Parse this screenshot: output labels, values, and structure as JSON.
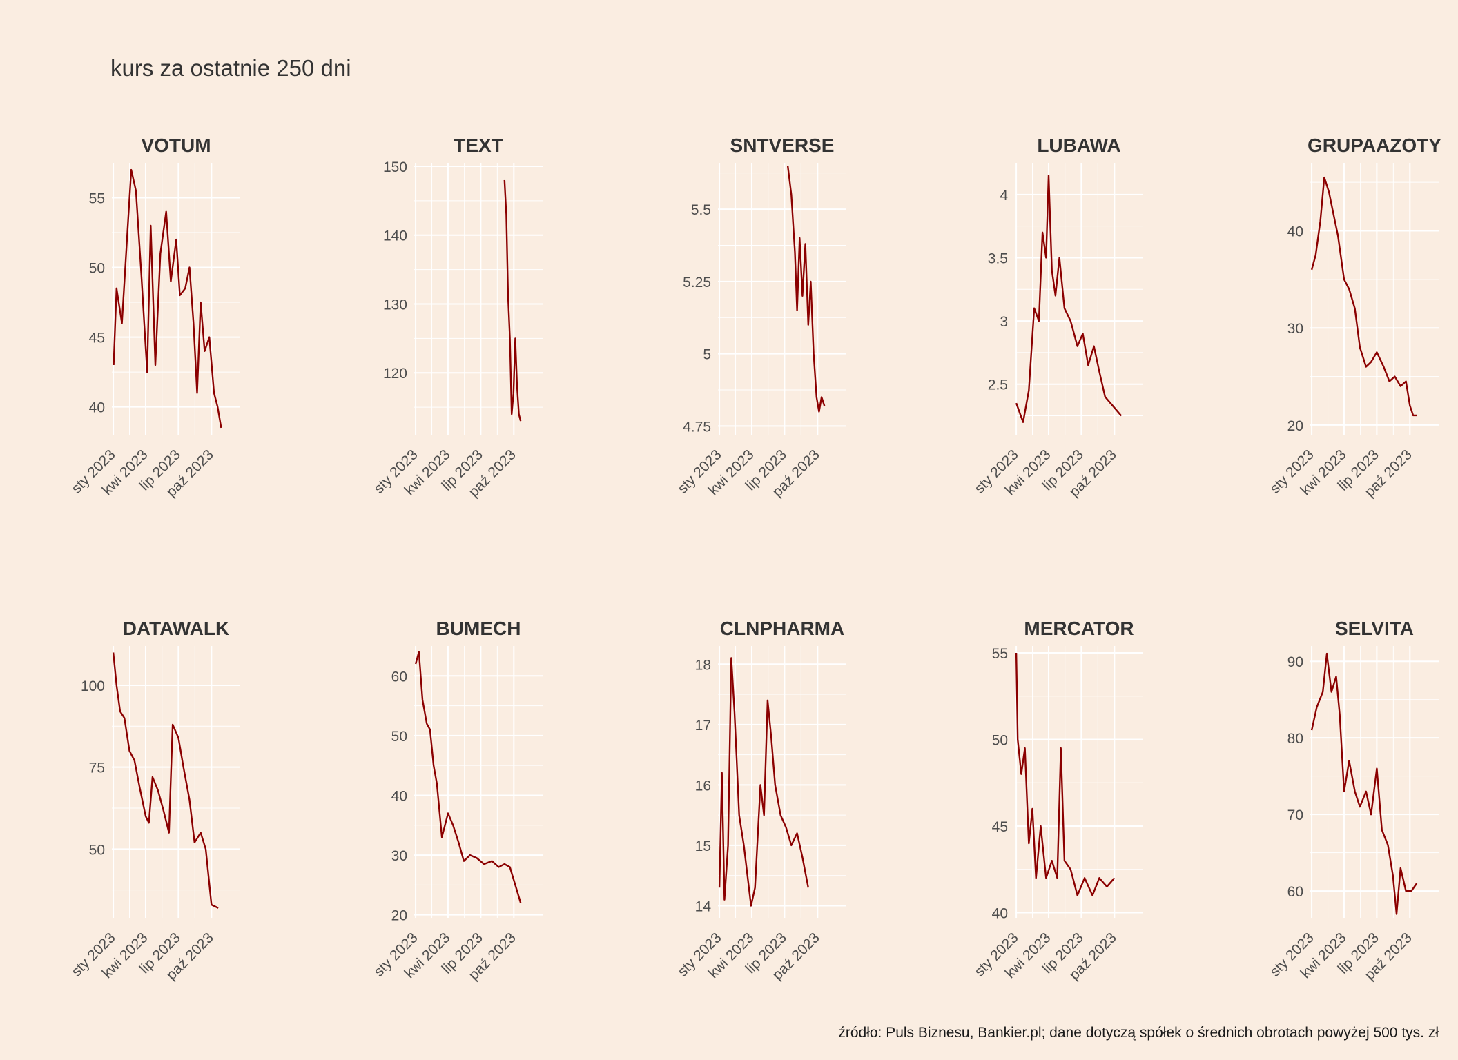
{
  "chart_data": {
    "type": "line",
    "title": "kurs za ostatnie 250 dni",
    "caption": "źródło: Puls Biznesu, Bankier.pl; dane dotyczą spółek o średnich obrotach powyżej 500 tys. zł",
    "x_range": [
      "2022-12-28",
      "2023-12-20"
    ],
    "x_ticks": [
      {
        "date": "2023-01-01",
        "label": "sty 2023"
      },
      {
        "date": "2023-04-01",
        "label": "kwi 2023"
      },
      {
        "date": "2023-07-01",
        "label": "lip 2023"
      },
      {
        "date": "2023-10-01",
        "label": "paź 2023"
      }
    ],
    "line_color": "#8b0000",
    "grid": true,
    "panels": [
      {
        "name": "VOTUM",
        "ylim": [
          38,
          57.5
        ],
        "y_ticks": [
          40,
          45,
          50,
          55
        ],
        "series": [
          [
            "2023-01-02",
            43.0
          ],
          [
            "2023-01-10",
            48.5
          ],
          [
            "2023-01-25",
            46.0
          ],
          [
            "2023-02-08",
            52.0
          ],
          [
            "2023-02-20",
            57.0
          ],
          [
            "2023-03-05",
            55.5
          ],
          [
            "2023-03-20",
            49.5
          ],
          [
            "2023-04-05",
            42.5
          ],
          [
            "2023-04-15",
            53.0
          ],
          [
            "2023-04-28",
            43.0
          ],
          [
            "2023-05-12",
            51.0
          ],
          [
            "2023-05-28",
            54.0
          ],
          [
            "2023-06-10",
            49.0
          ],
          [
            "2023-06-25",
            52.0
          ],
          [
            "2023-07-05",
            48.0
          ],
          [
            "2023-07-20",
            48.5
          ],
          [
            "2023-08-01",
            50.0
          ],
          [
            "2023-08-12",
            46.0
          ],
          [
            "2023-08-22",
            41.0
          ],
          [
            "2023-09-01",
            47.5
          ],
          [
            "2023-09-12",
            44.0
          ],
          [
            "2023-09-25",
            45.0
          ],
          [
            "2023-10-08",
            41.0
          ],
          [
            "2023-10-18",
            40.0
          ],
          [
            "2023-10-28",
            38.5
          ]
        ]
      },
      {
        "name": "TEXT",
        "ylim": [
          111,
          150.5
        ],
        "y_ticks": [
          120,
          130,
          140,
          150
        ],
        "series": [
          [
            "2023-09-05",
            148.0
          ],
          [
            "2023-09-10",
            143.0
          ],
          [
            "2023-09-15",
            131.0
          ],
          [
            "2023-09-20",
            125.0
          ],
          [
            "2023-09-25",
            114.0
          ],
          [
            "2023-09-30",
            117.0
          ],
          [
            "2023-10-05",
            125.0
          ],
          [
            "2023-10-10",
            118.0
          ],
          [
            "2023-10-15",
            114.0
          ],
          [
            "2023-10-20",
            113.0
          ]
        ]
      },
      {
        "name": "SNTVERSE",
        "ylim": [
          4.72,
          5.66
        ],
        "y_ticks": [
          4.75,
          5.0,
          5.25,
          5.5
        ],
        "series": [
          [
            "2023-07-10",
            5.65
          ],
          [
            "2023-07-20",
            5.55
          ],
          [
            "2023-07-30",
            5.35
          ],
          [
            "2023-08-05",
            5.15
          ],
          [
            "2023-08-12",
            5.4
          ],
          [
            "2023-08-20",
            5.2
          ],
          [
            "2023-08-28",
            5.38
          ],
          [
            "2023-09-05",
            5.1
          ],
          [
            "2023-09-12",
            5.25
          ],
          [
            "2023-09-20",
            5.0
          ],
          [
            "2023-09-28",
            4.85
          ],
          [
            "2023-10-05",
            4.8
          ],
          [
            "2023-10-12",
            4.85
          ],
          [
            "2023-10-20",
            4.82
          ]
        ]
      },
      {
        "name": "LUBAWA",
        "ylim": [
          2.1,
          4.25
        ],
        "y_ticks": [
          2.5,
          3.0,
          3.5,
          4.0
        ],
        "series": [
          [
            "2023-01-01",
            2.35
          ],
          [
            "2023-01-20",
            2.2
          ],
          [
            "2023-02-05",
            2.45
          ],
          [
            "2023-02-20",
            3.1
          ],
          [
            "2023-03-05",
            3.0
          ],
          [
            "2023-03-15",
            3.7
          ],
          [
            "2023-03-25",
            3.5
          ],
          [
            "2023-04-01",
            4.15
          ],
          [
            "2023-04-10",
            3.4
          ],
          [
            "2023-04-20",
            3.2
          ],
          [
            "2023-05-01",
            3.5
          ],
          [
            "2023-05-15",
            3.1
          ],
          [
            "2023-06-01",
            3.0
          ],
          [
            "2023-06-20",
            2.8
          ],
          [
            "2023-07-05",
            2.9
          ],
          [
            "2023-07-20",
            2.65
          ],
          [
            "2023-08-05",
            2.8
          ],
          [
            "2023-08-20",
            2.6
          ],
          [
            "2023-09-05",
            2.4
          ],
          [
            "2023-09-20",
            2.35
          ],
          [
            "2023-10-05",
            2.3
          ],
          [
            "2023-10-20",
            2.25
          ]
        ]
      },
      {
        "name": "GRUPAAZOTY",
        "ylim": [
          19,
          47
        ],
        "y_ticks": [
          20,
          30,
          40
        ],
        "series": [
          [
            "2023-01-01",
            36.0
          ],
          [
            "2023-01-12",
            37.5
          ],
          [
            "2023-01-25",
            41.0
          ],
          [
            "2023-02-05",
            45.5
          ],
          [
            "2023-02-18",
            44.0
          ],
          [
            "2023-03-01",
            42.0
          ],
          [
            "2023-03-15",
            39.5
          ],
          [
            "2023-04-01",
            35.0
          ],
          [
            "2023-04-15",
            34.0
          ],
          [
            "2023-05-01",
            32.0
          ],
          [
            "2023-05-15",
            28.0
          ],
          [
            "2023-06-01",
            26.0
          ],
          [
            "2023-06-15",
            26.5
          ],
          [
            "2023-07-01",
            27.5
          ],
          [
            "2023-07-20",
            26.0
          ],
          [
            "2023-08-05",
            24.5
          ],
          [
            "2023-08-20",
            25.0
          ],
          [
            "2023-09-05",
            24.0
          ],
          [
            "2023-09-20",
            24.5
          ],
          [
            "2023-10-01",
            22.0
          ],
          [
            "2023-10-10",
            21.0
          ],
          [
            "2023-10-20",
            21.0
          ]
        ]
      },
      {
        "name": "DATAWALK",
        "ylim": [
          29,
          112
        ],
        "y_ticks": [
          50,
          75,
          100
        ],
        "series": [
          [
            "2023-01-01",
            110.0
          ],
          [
            "2023-01-10",
            100.0
          ],
          [
            "2023-01-20",
            92.0
          ],
          [
            "2023-02-01",
            90.0
          ],
          [
            "2023-02-15",
            80.0
          ],
          [
            "2023-03-01",
            77.0
          ],
          [
            "2023-03-15",
            69.0
          ],
          [
            "2023-04-01",
            60.0
          ],
          [
            "2023-04-10",
            58.0
          ],
          [
            "2023-04-20",
            72.0
          ],
          [
            "2023-05-05",
            68.0
          ],
          [
            "2023-05-20",
            62.0
          ],
          [
            "2023-06-05",
            55.0
          ],
          [
            "2023-06-15",
            88.0
          ],
          [
            "2023-07-01",
            84.0
          ],
          [
            "2023-07-15",
            75.0
          ],
          [
            "2023-08-01",
            65.0
          ],
          [
            "2023-08-15",
            52.0
          ],
          [
            "2023-09-01",
            55.0
          ],
          [
            "2023-09-15",
            50.0
          ],
          [
            "2023-10-01",
            33.0
          ],
          [
            "2023-10-20",
            32.0
          ]
        ]
      },
      {
        "name": "BUMECH",
        "ylim": [
          19.5,
          65
        ],
        "y_ticks": [
          20,
          30,
          40,
          50,
          60
        ],
        "series": [
          [
            "2023-01-01",
            62.0
          ],
          [
            "2023-01-10",
            64.0
          ],
          [
            "2023-01-20",
            56.0
          ],
          [
            "2023-02-01",
            52.0
          ],
          [
            "2023-02-10",
            51.0
          ],
          [
            "2023-02-20",
            45.0
          ],
          [
            "2023-03-01",
            42.0
          ],
          [
            "2023-03-15",
            33.0
          ],
          [
            "2023-04-01",
            37.0
          ],
          [
            "2023-04-15",
            35.0
          ],
          [
            "2023-05-01",
            32.0
          ],
          [
            "2023-05-15",
            29.0
          ],
          [
            "2023-06-01",
            30.0
          ],
          [
            "2023-06-20",
            29.5
          ],
          [
            "2023-07-10",
            28.5
          ],
          [
            "2023-08-01",
            29.0
          ],
          [
            "2023-08-20",
            28.0
          ],
          [
            "2023-09-05",
            28.5
          ],
          [
            "2023-09-20",
            28.0
          ],
          [
            "2023-10-05",
            25.0
          ],
          [
            "2023-10-20",
            22.0
          ]
        ]
      },
      {
        "name": "CLNPHARMA",
        "ylim": [
          13.8,
          18.3
        ],
        "y_ticks": [
          14,
          15,
          16,
          17,
          18
        ],
        "series": [
          [
            "2023-01-01",
            14.3
          ],
          [
            "2023-01-08",
            16.2
          ],
          [
            "2023-01-15",
            14.1
          ],
          [
            "2023-01-25",
            15.0
          ],
          [
            "2023-02-03",
            18.1
          ],
          [
            "2023-02-12",
            17.2
          ],
          [
            "2023-02-25",
            15.5
          ],
          [
            "2023-03-10",
            15.0
          ],
          [
            "2023-03-20",
            14.5
          ],
          [
            "2023-03-30",
            14.0
          ],
          [
            "2023-04-10",
            14.3
          ],
          [
            "2023-04-25",
            16.0
          ],
          [
            "2023-05-05",
            15.5
          ],
          [
            "2023-05-15",
            17.4
          ],
          [
            "2023-05-25",
            16.8
          ],
          [
            "2023-06-05",
            16.0
          ],
          [
            "2023-06-20",
            15.5
          ],
          [
            "2023-07-05",
            15.3
          ],
          [
            "2023-07-20",
            15.0
          ],
          [
            "2023-08-05",
            15.2
          ],
          [
            "2023-08-20",
            14.8
          ],
          [
            "2023-09-05",
            14.3
          ]
        ]
      },
      {
        "name": "MERCATOR",
        "ylim": [
          39.7,
          55.4
        ],
        "y_ticks": [
          40,
          45,
          50,
          55
        ],
        "series": [
          [
            "2023-01-01",
            55.0
          ],
          [
            "2023-01-05",
            50.0
          ],
          [
            "2023-01-15",
            48.0
          ],
          [
            "2023-01-25",
            49.5
          ],
          [
            "2023-02-05",
            44.0
          ],
          [
            "2023-02-15",
            46.0
          ],
          [
            "2023-02-25",
            42.0
          ],
          [
            "2023-03-10",
            45.0
          ],
          [
            "2023-03-25",
            42.0
          ],
          [
            "2023-04-10",
            43.0
          ],
          [
            "2023-04-25",
            42.0
          ],
          [
            "2023-05-05",
            49.5
          ],
          [
            "2023-05-15",
            43.0
          ],
          [
            "2023-06-01",
            42.5
          ],
          [
            "2023-06-20",
            41.0
          ],
          [
            "2023-07-10",
            42.0
          ],
          [
            "2023-08-01",
            41.0
          ],
          [
            "2023-08-20",
            42.0
          ],
          [
            "2023-09-10",
            41.5
          ],
          [
            "2023-10-01",
            42.0
          ]
        ]
      },
      {
        "name": "SELVITA",
        "ylim": [
          56.5,
          92
        ],
        "y_ticks": [
          60,
          70,
          80,
          90
        ],
        "series": [
          [
            "2023-01-01",
            81.0
          ],
          [
            "2023-01-15",
            84.0
          ],
          [
            "2023-02-01",
            86.0
          ],
          [
            "2023-02-12",
            91.0
          ],
          [
            "2023-02-25",
            86.0
          ],
          [
            "2023-03-10",
            88.0
          ],
          [
            "2023-03-20",
            83.0
          ],
          [
            "2023-04-01",
            73.0
          ],
          [
            "2023-04-15",
            77.0
          ],
          [
            "2023-05-01",
            73.0
          ],
          [
            "2023-05-15",
            71.0
          ],
          [
            "2023-06-01",
            73.0
          ],
          [
            "2023-06-15",
            70.0
          ],
          [
            "2023-07-01",
            76.0
          ],
          [
            "2023-07-15",
            68.0
          ],
          [
            "2023-08-01",
            66.0
          ],
          [
            "2023-08-15",
            62.0
          ],
          [
            "2023-08-25",
            57.0
          ],
          [
            "2023-09-05",
            63.0
          ],
          [
            "2023-09-20",
            60.0
          ],
          [
            "2023-10-05",
            60.0
          ],
          [
            "2023-10-20",
            61.0
          ]
        ]
      }
    ]
  }
}
